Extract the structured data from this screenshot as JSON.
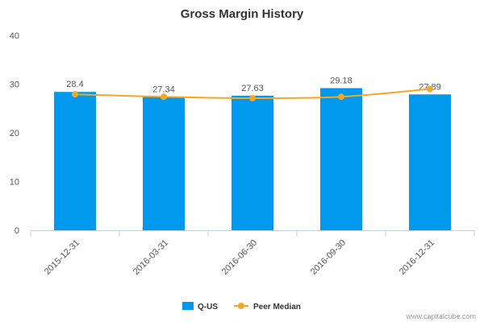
{
  "chart_data": {
    "type": "bar",
    "title": "Gross Margin History",
    "categories": [
      "2015-12-31",
      "2016-03-31",
      "2016-06-30",
      "2016-09-30",
      "2016-12-31"
    ],
    "series": [
      {
        "name": "Q-US",
        "type": "bar",
        "color": "#0099ee",
        "values": [
          28.4,
          27.34,
          27.63,
          29.18,
          27.89
        ],
        "labels": [
          "28.4",
          "27.34",
          "27.63",
          "29.18",
          "27.89"
        ]
      },
      {
        "name": "Peer Median",
        "type": "line",
        "color": "#f5a623",
        "values": [
          27.9,
          27.4,
          27.1,
          27.4,
          29.0
        ]
      }
    ],
    "y_ticks": [
      "0",
      "10",
      "20",
      "30",
      "40"
    ],
    "ylim": [
      0,
      40
    ],
    "xlabel": "",
    "ylabel": "",
    "grid": false,
    "legend": "bottom-center"
  },
  "credit": "www.capitalcube.com"
}
